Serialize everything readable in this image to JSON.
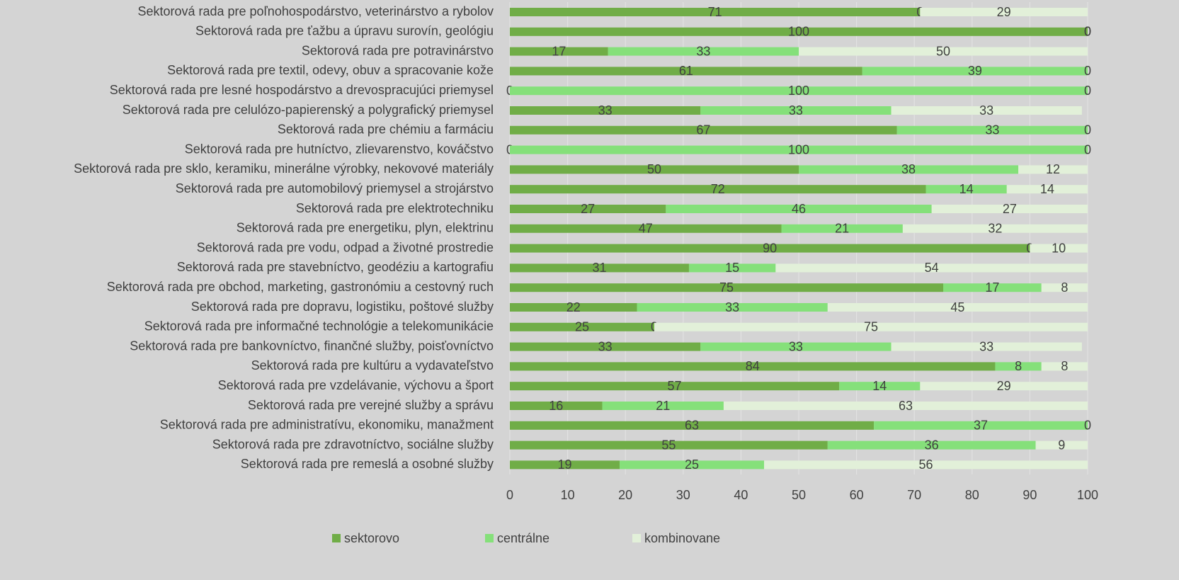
{
  "chart_data": {
    "type": "bar",
    "orientation": "horizontal",
    "stacked": true,
    "categories": [
      "Sektorová rada pre poľnohospodárstvo, veterinárstvo a rybolov",
      "Sektorová rada pre ťažbu a úpravu surovín, geológiu",
      "Sektorová rada pre potravinárstvo",
      "Sektorová rada pre textil, odevy, obuv a spracovanie kože",
      "Sektorová rada pre lesné hospodárstvo a drevospracujúci priemysel",
      "Sektorová rada pre celulózo-papierenský a polygrafický priemysel",
      "Sektorová rada pre chémiu a farmáciu",
      "Sektorová rada pre hutníctvo, zlievarenstvo, kováčstvo",
      "Sektorová rada pre sklo, keramiku, minerálne výrobky, nekovové materiály",
      "Sektorová rada pre automobilový priemysel a strojárstvo",
      "Sektorová rada pre elektrotechniku",
      "Sektorová rada pre energetiku, plyn, elektrinu",
      "Sektorová rada pre vodu, odpad a životné prostredie",
      "Sektorová rada pre stavebníctvo, geodéziu a kartografiu",
      "Sektorová rada pre obchod, marketing, gastronómiu a cestovný ruch",
      "Sektorová rada pre dopravu, logistiku, poštové služby",
      "Sektorová rada pre informačné technológie a telekomunikácie",
      "Sektorová rada pre bankovníctvo, finančné služby, poisťovníctvo",
      "Sektorová rada pre kultúru a vydavateľstvo",
      "Sektorová rada pre vzdelávanie, výchovu a šport",
      "Sektorová rada pre verejné služby a správu",
      "Sektorová rada pre administratívu, ekonomiku, manažment",
      "Sektorová rada pre zdravotníctvo, sociálne služby",
      "Sektorová rada pre remeslá a osobné služby"
    ],
    "series": [
      {
        "name": "sektorovo",
        "color": "#70ad47",
        "values": [
          71,
          100,
          17,
          61,
          0,
          33,
          67,
          0,
          50,
          72,
          27,
          47,
          90,
          31,
          75,
          22,
          25,
          33,
          84,
          57,
          16,
          63,
          55,
          19
        ]
      },
      {
        "name": "centrálne",
        "color": "#85e07a",
        "values": [
          0,
          0,
          33,
          39,
          100,
          33,
          33,
          100,
          38,
          14,
          46,
          21,
          0,
          15,
          17,
          33,
          0,
          33,
          8,
          14,
          21,
          37,
          36,
          25
        ]
      },
      {
        "name": "kombinovane",
        "color": "#e2f0d9",
        "values": [
          29,
          0,
          50,
          0,
          0,
          33,
          0,
          0,
          12,
          14,
          27,
          32,
          10,
          54,
          8,
          45,
          75,
          33,
          8,
          29,
          63,
          0,
          9,
          56
        ]
      }
    ],
    "xlim": [
      0,
      100
    ],
    "xticks": [
      0,
      10,
      20,
      30,
      40,
      50,
      60,
      70,
      80,
      90,
      100
    ],
    "grid": true,
    "legend": "bottom"
  }
}
